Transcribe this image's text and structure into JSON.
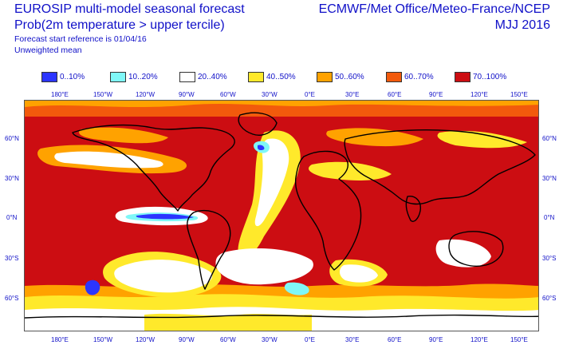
{
  "header": {
    "title_line1": "EUROSIP multi-model seasonal forecast",
    "title_line2": "Prob(2m temperature > upper tercile)",
    "forecast_ref": "Forecast start reference is 01/04/16",
    "weighting": "Unweighted mean",
    "centres": "ECMWF/Met Office/Meteo-France/NCEP",
    "season": "MJJ 2016"
  },
  "legend": [
    {
      "label": "0..10%",
      "color": "#2b35ff"
    },
    {
      "label": "10..20%",
      "color": "#7ff7f7"
    },
    {
      "label": "20..40%",
      "color": "#ffffff"
    },
    {
      "label": "40..50%",
      "color": "#ffe92b"
    },
    {
      "label": "50..60%",
      "color": "#ffa200"
    },
    {
      "label": "60..70%",
      "color": "#f25a0c"
    },
    {
      "label": "70..100%",
      "color": "#cc0d12"
    }
  ],
  "axes": {
    "lon_top": [
      "180°E",
      "150°W",
      "120°W",
      "90°W",
      "60°W",
      "30°W",
      "0°E",
      "30°E",
      "60°E",
      "90°E",
      "120°E",
      "150°E"
    ],
    "lon_bottom": [
      "180°E",
      "150°W",
      "120°W",
      "90°W",
      "60°W",
      "30°W",
      "0°E",
      "30°E",
      "60°E",
      "90°E",
      "120°E",
      "150°E"
    ],
    "lat_left": [
      "60°N",
      "30°N",
      "0°N",
      "30°S",
      "60°S"
    ],
    "lat_right": [
      "60°N",
      "30°N",
      "0°N",
      "30°S",
      "60°S"
    ]
  }
}
